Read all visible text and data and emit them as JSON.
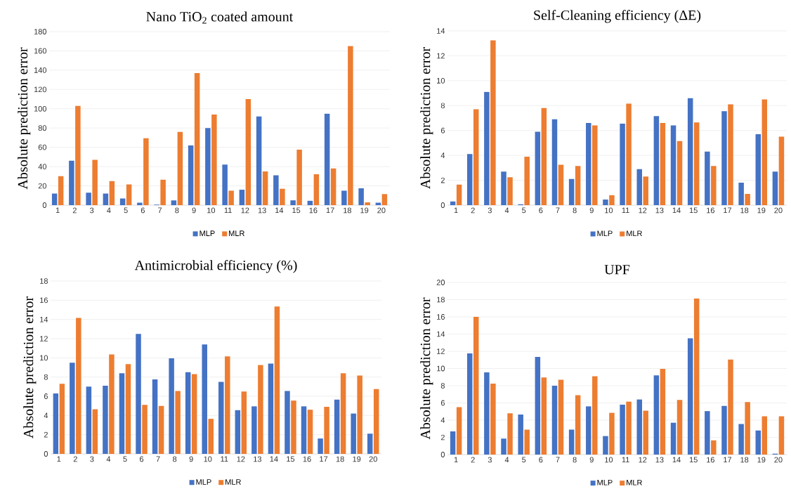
{
  "chart_data": [
    {
      "type": "bar",
      "title": "Nano TiO$_{2}$ coated amount",
      "ylabel": "Absolute prediction error",
      "categories": [
        "1",
        "2",
        "3",
        "4",
        "5",
        "6",
        "7",
        "8",
        "9",
        "10",
        "11",
        "12",
        "13",
        "14",
        "15",
        "16",
        "17",
        "18",
        "19",
        "20"
      ],
      "ylim": [
        0,
        180
      ],
      "yticks": [
        0,
        20,
        40,
        60,
        80,
        100,
        120,
        140,
        160,
        180
      ],
      "grid": "y",
      "legend": "bottom",
      "series": [
        {
          "name": "MLP",
          "color": "#4472c4",
          "values": [
            12,
            46,
            13,
            12,
            7,
            2.5,
            0.5,
            5,
            62,
            80,
            42,
            16,
            92,
            31,
            5,
            4.5,
            95,
            15,
            17.5,
            2.5
          ]
        },
        {
          "name": "MLR",
          "color": "#ed7d31",
          "values": [
            30,
            103,
            47,
            25,
            21.5,
            69.5,
            26.5,
            76,
            137,
            94,
            15,
            110,
            35,
            17,
            57.5,
            32,
            38,
            165,
            3,
            11.5
          ]
        }
      ]
    },
    {
      "type": "bar",
      "title": "Self-Cleaning efficiency (ΔE)",
      "ylabel": "Absolute prediction error",
      "categories": [
        "1",
        "2",
        "3",
        "4",
        "5",
        "6",
        "7",
        "8",
        "9",
        "10",
        "11",
        "12",
        "13",
        "14",
        "15",
        "16",
        "17",
        "18",
        "19",
        "20"
      ],
      "ylim": [
        0,
        14
      ],
      "yticks": [
        0,
        2,
        4,
        6,
        8,
        10,
        12,
        14
      ],
      "grid": "y",
      "legend": "bottom",
      "series": [
        {
          "name": "MLP",
          "color": "#4472c4",
          "values": [
            0.3,
            4.1,
            9.1,
            2.7,
            0.07,
            5.9,
            6.9,
            2.1,
            6.6,
            0.45,
            6.55,
            2.9,
            7.15,
            6.4,
            8.6,
            4.3,
            7.55,
            1.8,
            5.7,
            2.7
          ]
        },
        {
          "name": "MLR",
          "color": "#ed7d31",
          "values": [
            1.65,
            7.7,
            13.25,
            2.25,
            3.9,
            7.8,
            3.25,
            3.15,
            6.4,
            0.8,
            8.15,
            2.3,
            6.6,
            5.15,
            6.65,
            3.15,
            8.1,
            0.9,
            8.5,
            5.5
          ]
        }
      ]
    },
    {
      "type": "bar",
      "title": "Antimicrobial efficiency (%)",
      "ylabel": "Absolute prediction error",
      "categories": [
        "1",
        "2",
        "3",
        "4",
        "5",
        "6",
        "7",
        "8",
        "9",
        "10",
        "11",
        "12",
        "13",
        "14",
        "15",
        "16",
        "17",
        "18",
        "19",
        "20"
      ],
      "ylim": [
        0,
        18
      ],
      "yticks": [
        0,
        2,
        4,
        6,
        8,
        10,
        12,
        14,
        16,
        18
      ],
      "grid": "y",
      "legend": "bottom",
      "series": [
        {
          "name": "MLP",
          "color": "#4472c4",
          "values": [
            6.3,
            9.5,
            7.0,
            7.1,
            8.4,
            12.5,
            7.75,
            9.95,
            8.5,
            11.4,
            7.5,
            4.55,
            4.95,
            9.4,
            6.55,
            4.95,
            1.6,
            5.65,
            4.2,
            2.1
          ]
        },
        {
          "name": "MLR",
          "color": "#ed7d31",
          "values": [
            7.3,
            14.15,
            4.65,
            10.35,
            9.35,
            5.1,
            5.0,
            6.55,
            8.3,
            3.65,
            10.15,
            6.5,
            9.25,
            15.35,
            5.55,
            4.6,
            4.9,
            8.4,
            8.15,
            6.75
          ]
        }
      ]
    },
    {
      "type": "bar",
      "title": "UPF",
      "ylabel": "Absolute prediction error",
      "categories": [
        "1",
        "2",
        "3",
        "4",
        "5",
        "6",
        "7",
        "8",
        "9",
        "10",
        "11",
        "12",
        "13",
        "14",
        "15",
        "16",
        "17",
        "18",
        "19",
        "20"
      ],
      "ylim": [
        0,
        20
      ],
      "yticks": [
        0,
        2,
        4,
        6,
        8,
        10,
        12,
        14,
        16,
        18,
        20
      ],
      "grid": "y",
      "legend": "bottom",
      "series": [
        {
          "name": "MLP",
          "color": "#4472c4",
          "values": [
            2.7,
            11.75,
            9.55,
            1.85,
            4.65,
            11.35,
            8.0,
            2.9,
            5.6,
            2.15,
            5.8,
            6.4,
            9.2,
            3.7,
            13.5,
            5.05,
            5.65,
            3.55,
            2.8,
            0.1
          ]
        },
        {
          "name": "MLR",
          "color": "#ed7d31",
          "values": [
            5.5,
            16.0,
            8.25,
            4.8,
            2.9,
            8.95,
            8.7,
            6.9,
            9.1,
            4.85,
            6.15,
            5.1,
            9.95,
            6.35,
            18.15,
            1.65,
            11.05,
            6.1,
            4.45,
            4.45
          ]
        }
      ]
    }
  ]
}
